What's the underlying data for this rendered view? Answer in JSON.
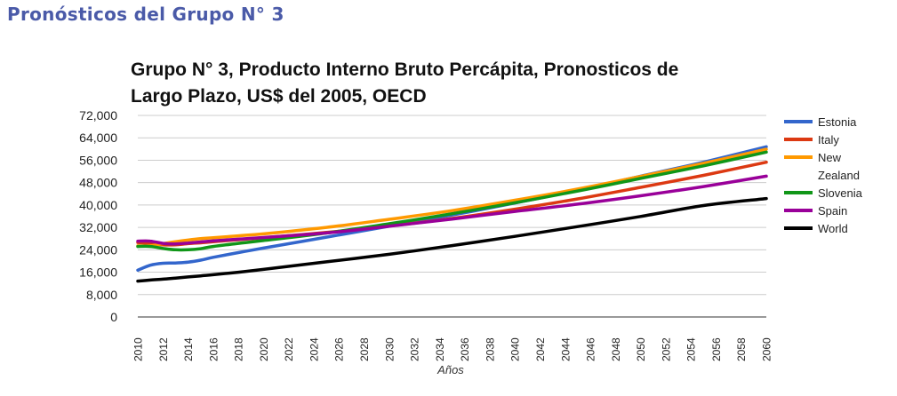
{
  "page_heading": "Pronósticos del Grupo N° 3",
  "chart_data": {
    "type": "line",
    "title_line1": "Grupo N° 3, Producto Interno Bruto Percápita, Pronosticos de",
    "title_line2": "Largo Plazo, US$ del 2005, OECD",
    "xlabel": "Años",
    "ylabel": "",
    "ylim": [
      0,
      72000
    ],
    "yticks": [
      0,
      8000,
      16000,
      24000,
      32000,
      40000,
      48000,
      56000,
      64000,
      72000
    ],
    "ytick_labels": [
      "0",
      "8,000",
      "16,000",
      "24,000",
      "32,000",
      "40,000",
      "48,000",
      "56,000",
      "64,000",
      "72,000"
    ],
    "xlim": [
      2010,
      2060
    ],
    "xtick_labels": [
      "2010",
      "2012",
      "2014",
      "2016",
      "2018",
      "2020",
      "2022",
      "2024",
      "2026",
      "2028",
      "2030",
      "2032",
      "2034",
      "2036",
      "2038",
      "2040",
      "2042",
      "2044",
      "2046",
      "2048",
      "2050",
      "2052",
      "2054",
      "2056",
      "2058",
      "2060"
    ],
    "grid": true,
    "legend_position": "right",
    "x": [
      2010,
      2011,
      2012,
      2013,
      2014,
      2015,
      2016,
      2018,
      2020,
      2025,
      2030,
      2035,
      2040,
      2045,
      2050,
      2055,
      2060
    ],
    "series": [
      {
        "name": "Estonia",
        "color": "#3366cc",
        "values": [
          16700,
          18500,
          19200,
          19300,
          19600,
          20300,
          21300,
          23000,
          24600,
          28500,
          32400,
          36400,
          40700,
          45300,
          50300,
          55300,
          60800
        ]
      },
      {
        "name": "Italy",
        "color": "#dc3912",
        "values": [
          26600,
          26200,
          25800,
          25800,
          26200,
          26500,
          26900,
          27600,
          28300,
          30200,
          32500,
          35200,
          38500,
          42200,
          46300,
          50600,
          55300
        ]
      },
      {
        "name": "New Zealand",
        "color": "#ff9900",
        "values": [
          25400,
          25400,
          26200,
          26900,
          27500,
          28000,
          28300,
          29000,
          29700,
          32000,
          34900,
          38000,
          41700,
          45700,
          50200,
          54900,
          59900
        ]
      },
      {
        "name": "Slovenia",
        "color": "#109618",
        "values": [
          25200,
          25200,
          24500,
          24000,
          24000,
          24400,
          25200,
          26300,
          27300,
          30000,
          33300,
          36900,
          40800,
          45000,
          49500,
          54000,
          58900
        ]
      },
      {
        "name": "Spain",
        "color": "#990099",
        "values": [
          27100,
          27100,
          26300,
          26100,
          26400,
          26800,
          27200,
          27800,
          28400,
          30000,
          32400,
          35000,
          37700,
          40300,
          43300,
          46600,
          50300
        ]
      },
      {
        "name": "World",
        "color": "#000000",
        "values": [
          12800,
          13200,
          13500,
          13900,
          14300,
          14700,
          15100,
          16000,
          17000,
          19700,
          22400,
          25500,
          28800,
          32300,
          35900,
          39800,
          42300
        ]
      }
    ]
  }
}
